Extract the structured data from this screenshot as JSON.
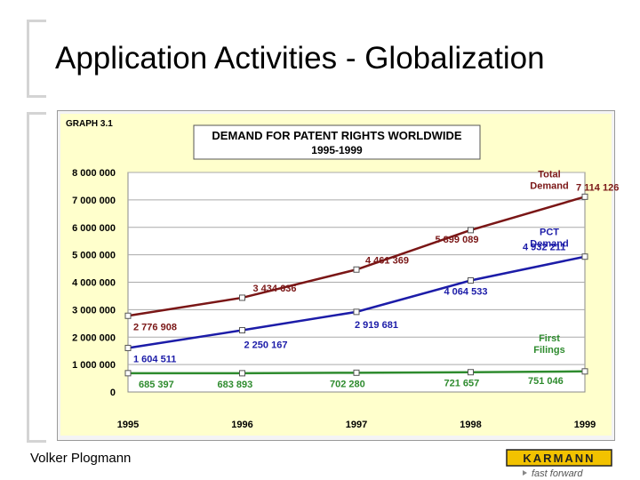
{
  "slide": {
    "title": "Application Activities - Globalization",
    "footer_author": "Volker Plogmann",
    "logo_text": "KARMANN",
    "logo_tagline": "fast forward"
  },
  "chart_data": {
    "type": "line",
    "graph_label": "GRAPH 3.1",
    "title": "DEMAND FOR PATENT RIGHTS WORLDWIDE",
    "subtitle": "1995-1999",
    "x": [
      1995,
      1996,
      1997,
      1998,
      1999
    ],
    "x_tick_labels": [
      "1995",
      "1996",
      "1997",
      "1998",
      "1999"
    ],
    "ylim": [
      0,
      8000000
    ],
    "y_tick_labels": [
      "0",
      "1 000 000",
      "2 000 000",
      "3 000 000",
      "4 000 000",
      "5 000 000",
      "6 000 000",
      "7 000 000",
      "8 000 000"
    ],
    "grid": true,
    "series": [
      {
        "name": "Total Demand",
        "color": "#7a1616",
        "values": [
          2776908,
          3434636,
          4461369,
          5899089,
          7114126
        ],
        "value_labels": [
          "2 776 908",
          "3 434 636",
          "4 461 369",
          "5 899 089",
          "7 114 126"
        ]
      },
      {
        "name": "PCT Demand",
        "color": "#1c1ca8",
        "values": [
          1604511,
          2250167,
          2919681,
          4064533,
          4932211
        ],
        "value_labels": [
          "1 604 511",
          "2 250 167",
          "2 919 681",
          "4 064 533",
          "4 932 211"
        ]
      },
      {
        "name": "First Filings",
        "color": "#2e8b2e",
        "values": [
          685397,
          683893,
          702280,
          721657,
          751046
        ],
        "value_labels": [
          "685 397",
          "683 893",
          "702 280",
          "721 657",
          "751 046"
        ]
      }
    ]
  }
}
